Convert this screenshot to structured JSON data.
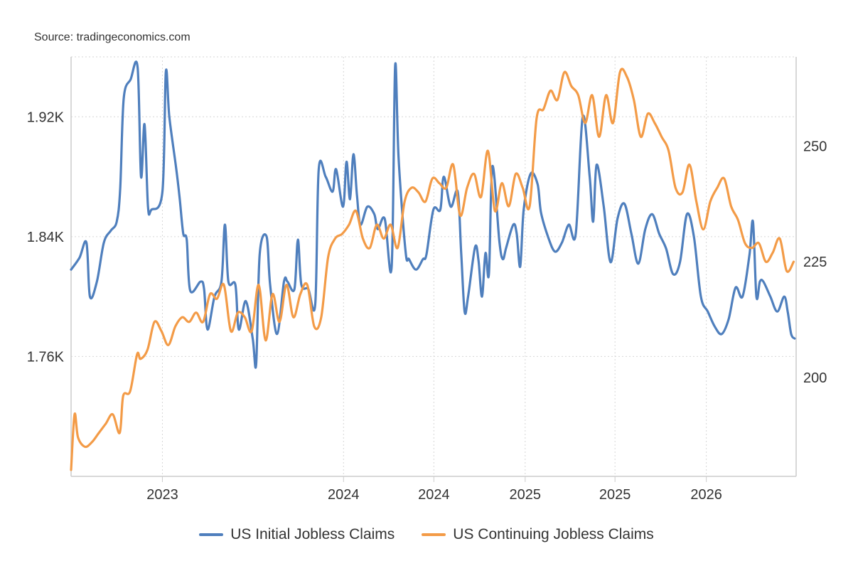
{
  "source": "Source: tradingeconomics.com",
  "colors": {
    "initial": "#4f7fbd",
    "continuing": "#f39b47",
    "grid": "#d6d6d6",
    "axis": "#cccccc"
  },
  "chart_data": {
    "type": "line",
    "grid": true,
    "legend_placement": "bottom-center",
    "x_ticks": [
      "2023",
      "2024",
      "2024",
      "2025",
      "2025",
      "2026"
    ],
    "x_tick_dates": [
      "2023-01-01",
      "2024-01-01",
      "2024-07-01",
      "2025-01-01",
      "2025-07-01",
      "2026-01-01"
    ],
    "xlim": [
      "2022-07-01",
      "2026-07-01"
    ],
    "left_axis": {
      "ticks": [
        "1.76K",
        "1.84K",
        "1.92K"
      ],
      "tick_values": [
        1760,
        1840,
        1920
      ],
      "ylim": [
        1680,
        1960
      ]
    },
    "right_axis": {
      "ticks": [
        "200",
        "225",
        "250"
      ],
      "tick_values": [
        200,
        225,
        250
      ],
      "ylim": [
        178.6,
        269.3
      ]
    },
    "series": [
      {
        "name": "US Initial Jobless Claims",
        "axis": "left",
        "x": [
          "2022-07-01",
          "2022-07-18",
          "2022-08-01",
          "2022-08-08",
          "2022-08-22",
          "2022-09-05",
          "2022-09-19",
          "2022-10-01",
          "2022-10-08",
          "2022-10-15",
          "2022-10-29",
          "2022-11-12",
          "2022-11-19",
          "2022-11-26",
          "2022-12-03",
          "2022-12-10",
          "2023-01-01",
          "2023-01-08",
          "2023-01-15",
          "2023-01-29",
          "2023-02-05",
          "2023-02-12",
          "2023-02-19",
          "2023-02-26",
          "2023-03-19",
          "2023-03-26",
          "2023-04-02",
          "2023-04-16",
          "2023-04-30",
          "2023-05-07",
          "2023-05-14",
          "2023-05-28",
          "2023-06-04",
          "2023-06-18",
          "2023-07-02",
          "2023-07-09",
          "2023-07-16",
          "2023-07-30",
          "2023-08-06",
          "2023-08-20",
          "2023-09-03",
          "2023-09-10",
          "2023-09-24",
          "2023-10-01",
          "2023-10-08",
          "2023-10-22",
          "2023-11-05",
          "2023-11-12",
          "2023-11-26",
          "2023-12-10",
          "2023-12-17",
          "2023-12-31",
          "2024-01-07",
          "2024-01-14",
          "2024-01-21",
          "2024-01-28",
          "2024-02-04",
          "2024-02-18",
          "2024-03-03",
          "2024-03-10",
          "2024-03-24",
          "2024-04-07",
          "2024-04-14",
          "2024-04-21",
          "2024-05-05",
          "2024-05-12",
          "2024-05-26",
          "2024-06-09",
          "2024-06-16",
          "2024-06-30",
          "2024-07-14",
          "2024-07-21",
          "2024-08-04",
          "2024-08-18",
          "2024-08-25",
          "2024-09-01",
          "2024-09-08",
          "2024-09-22",
          "2024-09-29",
          "2024-10-06",
          "2024-10-13",
          "2024-10-20",
          "2024-10-27",
          "2024-11-10",
          "2024-11-17",
          "2024-11-24",
          "2024-12-08",
          "2024-12-15",
          "2024-12-22",
          "2024-12-29",
          "2025-01-12",
          "2025-01-26",
          "2025-02-02",
          "2025-02-16",
          "2025-03-02",
          "2025-03-16",
          "2025-03-30",
          "2025-04-13",
          "2025-04-27",
          "2025-05-11",
          "2025-05-18",
          "2025-05-25",
          "2025-06-08",
          "2025-06-22",
          "2025-07-06",
          "2025-07-20",
          "2025-08-03",
          "2025-08-17",
          "2025-08-31",
          "2025-09-14",
          "2025-09-28",
          "2025-10-12",
          "2025-10-26",
          "2025-11-09",
          "2025-11-23",
          "2025-12-07",
          "2025-12-21",
          "2026-01-04",
          "2026-01-18",
          "2026-02-01",
          "2026-02-15",
          "2026-03-01",
          "2026-03-15",
          "2026-03-29",
          "2026-04-05",
          "2026-04-12",
          "2026-04-19",
          "2026-04-26",
          "2026-05-10",
          "2026-05-24",
          "2026-06-07",
          "2026-06-14",
          "2026-06-21",
          "2026-06-28"
        ],
        "values": [
          1818,
          1826,
          1836,
          1800,
          1810,
          1836,
          1844,
          1850,
          1872,
          1932,
          1945,
          1953,
          1880,
          1915,
          1860,
          1858,
          1870,
          1950,
          1920,
          1885,
          1865,
          1842,
          1838,
          1804,
          1810,
          1805,
          1778,
          1800,
          1810,
          1848,
          1810,
          1808,
          1778,
          1797,
          1772,
          1755,
          1828,
          1840,
          1808,
          1775,
          1810,
          1810,
          1805,
          1838,
          1808,
          1805,
          1795,
          1885,
          1880,
          1870,
          1885,
          1860,
          1890,
          1865,
          1895,
          1868,
          1848,
          1860,
          1855,
          1845,
          1852,
          1820,
          1954,
          1892,
          1830,
          1825,
          1818,
          1825,
          1828,
          1858,
          1858,
          1880,
          1860,
          1870,
          1830,
          1790,
          1800,
          1833,
          1824,
          1800,
          1829,
          1815,
          1887,
          1837,
          1825,
          1833,
          1848,
          1842,
          1820,
          1858,
          1882,
          1875,
          1856,
          1840,
          1830,
          1836,
          1848,
          1842,
          1920,
          1880,
          1850,
          1888,
          1861,
          1823,
          1852,
          1862,
          1842,
          1822,
          1845,
          1855,
          1842,
          1832,
          1815,
          1823,
          1855,
          1840,
          1800,
          1790,
          1780,
          1775,
          1785,
          1806,
          1800,
          1828,
          1850,
          1800,
          1810,
          1810,
          1800,
          1790,
          1800,
          1790,
          1775,
          1772
        ],
        "shape_note": ""
      },
      {
        "name": "US Continuing Jobless Claims",
        "axis": "right",
        "x": [
          "2022-07-01",
          "2022-07-08",
          "2022-07-15",
          "2022-07-29",
          "2022-08-12",
          "2022-08-26",
          "2022-09-09",
          "2022-09-23",
          "2022-10-07",
          "2022-10-14",
          "2022-10-28",
          "2022-11-11",
          "2022-11-18",
          "2022-12-02",
          "2022-12-16",
          "2022-12-30",
          "2023-01-13",
          "2023-01-27",
          "2023-02-10",
          "2023-02-24",
          "2023-03-10",
          "2023-03-24",
          "2023-04-07",
          "2023-04-21",
          "2023-05-05",
          "2023-05-19",
          "2023-06-02",
          "2023-06-16",
          "2023-06-30",
          "2023-07-14",
          "2023-07-28",
          "2023-08-11",
          "2023-08-25",
          "2023-09-08",
          "2023-09-22",
          "2023-10-06",
          "2023-10-20",
          "2023-11-03",
          "2023-11-17",
          "2023-12-01",
          "2023-12-15",
          "2023-12-29",
          "2024-01-12",
          "2024-01-26",
          "2024-02-09",
          "2024-02-23",
          "2024-03-08",
          "2024-03-22",
          "2024-04-05",
          "2024-04-19",
          "2024-05-03",
          "2024-05-17",
          "2024-05-31",
          "2024-06-14",
          "2024-06-28",
          "2024-07-12",
          "2024-07-26",
          "2024-08-09",
          "2024-08-23",
          "2024-09-06",
          "2024-09-20",
          "2024-10-04",
          "2024-10-18",
          "2024-11-01",
          "2024-11-15",
          "2024-11-29",
          "2024-12-13",
          "2024-12-27",
          "2025-01-10",
          "2025-01-24",
          "2025-02-07",
          "2025-02-21",
          "2025-03-07",
          "2025-03-21",
          "2025-04-04",
          "2025-04-18",
          "2025-05-02",
          "2025-05-16",
          "2025-05-30",
          "2025-06-13",
          "2025-06-27",
          "2025-07-11",
          "2025-07-25",
          "2025-08-08",
          "2025-08-22",
          "2025-09-05",
          "2025-09-19",
          "2025-10-03",
          "2025-10-17",
          "2025-10-31",
          "2025-11-14",
          "2025-11-28",
          "2025-12-12",
          "2025-12-26",
          "2026-01-09",
          "2026-01-23",
          "2026-02-06",
          "2026-02-20",
          "2026-03-06",
          "2026-03-20",
          "2026-04-03",
          "2026-04-17",
          "2026-05-01",
          "2026-05-15",
          "2026-05-29",
          "2026-06-12",
          "2026-06-26"
        ],
        "values": [
          180,
          192,
          187,
          185,
          186,
          188,
          190,
          192,
          188,
          196,
          197,
          205,
          204,
          206,
          212,
          210,
          207,
          211,
          213,
          212,
          214,
          212,
          218,
          217,
          220,
          210,
          214,
          213,
          210,
          220,
          208,
          218,
          212,
          220,
          213,
          218,
          220,
          211,
          213,
          226,
          230,
          231,
          233,
          236,
          230,
          228,
          233,
          230,
          233,
          228,
          238,
          241,
          240,
          238,
          243,
          242,
          241,
          246,
          235,
          241,
          244,
          239,
          249,
          236,
          242,
          237,
          244,
          241,
          237,
          256,
          258,
          262,
          260,
          266,
          263,
          261,
          255,
          261,
          252,
          261,
          255,
          266,
          265,
          260,
          252,
          257,
          255,
          252,
          249,
          241,
          240,
          246,
          238,
          232,
          238,
          241,
          243,
          237,
          234,
          229,
          228,
          229,
          225,
          227,
          230,
          223,
          225
        ]
      }
    ]
  }
}
